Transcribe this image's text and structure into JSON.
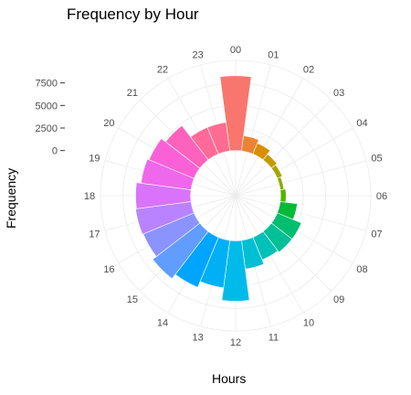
{
  "chart_data": {
    "type": "bar",
    "coord": "polar",
    "title": "Frequency by Hour",
    "xlabel": "Hours",
    "ylabel": "Frequency",
    "categories": [
      "00",
      "01",
      "02",
      "03",
      "04",
      "05",
      "06",
      "07",
      "08",
      "09",
      "10",
      "11",
      "12",
      "13",
      "14",
      "15",
      "16",
      "17",
      "18",
      "19",
      "20",
      "21",
      "22",
      "23"
    ],
    "values": [
      8300,
      1700,
      1300,
      800,
      600,
      400,
      600,
      1900,
      2900,
      2900,
      2700,
      3200,
      6700,
      5300,
      6000,
      6600,
      6100,
      6200,
      6100,
      5600,
      5400,
      4800,
      3200,
      3200
    ],
    "y_ticks": [
      0,
      2500,
      5000,
      7500
    ],
    "y_tick_labels": [
      "0",
      "2500",
      "5000",
      "7500"
    ],
    "ylim": [
      -5000,
      10000
    ],
    "grid": true,
    "legend": "none",
    "colors": [
      "#F8766D",
      "#EB8335",
      "#DA8F00",
      "#C49A00",
      "#A9A400",
      "#86AC00",
      "#53B400",
      "#00BA38",
      "#00BE70",
      "#00C097",
      "#00C1B7",
      "#00BFD3",
      "#00BBEA",
      "#00B0F6",
      "#00A5FF",
      "#619CFF",
      "#8B93FF",
      "#B983FF",
      "#D973FC",
      "#EF67EB",
      "#FB61D7",
      "#FF62BC",
      "#FF6A98",
      "#FF6C91"
    ]
  }
}
